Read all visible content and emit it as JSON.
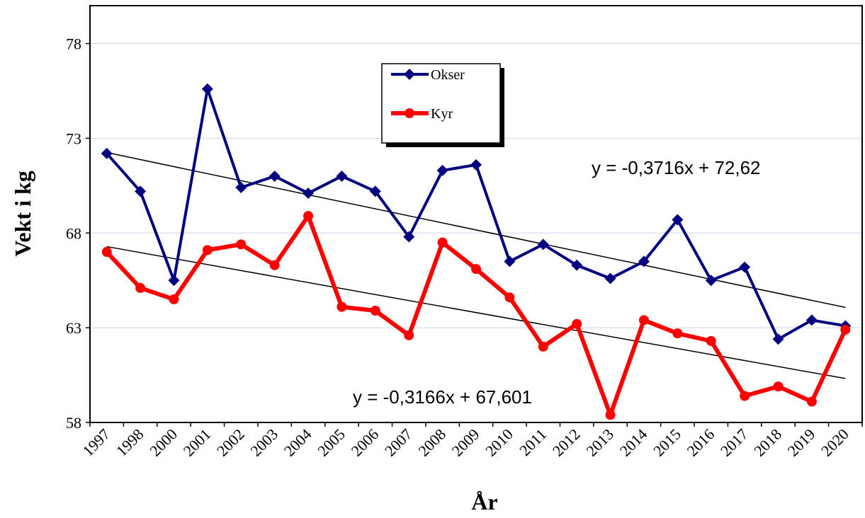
{
  "chart_data": {
    "type": "line",
    "title": "",
    "xlabel": "År",
    "ylabel": "Vekt i kg",
    "categories": [
      "1997",
      "1998",
      "2000",
      "2001",
      "2002",
      "2003",
      "2004",
      "2005",
      "2006",
      "2007",
      "2008",
      "2009",
      "2010",
      "2011",
      "2012",
      "2013",
      "2014",
      "2015",
      "2016",
      "2017",
      "2018",
      "2019",
      "2020"
    ],
    "ylim": [
      58,
      80
    ],
    "yticks": [
      58,
      63,
      68,
      73,
      78
    ],
    "grid": "horizontal",
    "legend_position": "top-center",
    "series": [
      {
        "name": "Okser",
        "color": "#000080",
        "marker": "diamond",
        "values": [
          72.2,
          70.2,
          65.5,
          75.6,
          70.4,
          71.0,
          70.1,
          71.0,
          70.2,
          67.8,
          71.3,
          71.6,
          66.5,
          67.4,
          66.3,
          65.6,
          66.5,
          68.7,
          65.5,
          66.2,
          62.4,
          63.4,
          63.1
        ]
      },
      {
        "name": "Kyr",
        "color": "#ff0000",
        "marker": "circle",
        "values": [
          67.0,
          65.1,
          64.5,
          67.1,
          67.4,
          66.3,
          68.9,
          64.1,
          63.9,
          62.6,
          67.5,
          66.1,
          64.6,
          62.0,
          63.2,
          58.4,
          63.4,
          62.7,
          62.3,
          59.4,
          59.9,
          59.1,
          62.9
        ]
      }
    ],
    "trendlines": [
      {
        "series": "Okser",
        "slope": -0.3716,
        "intercept": 72.62,
        "label": "y = -0,3716x + 72,62"
      },
      {
        "series": "Kyr",
        "slope": -0.3166,
        "intercept": 67.601,
        "label": "y = -0,3166x + 67,601"
      }
    ]
  }
}
